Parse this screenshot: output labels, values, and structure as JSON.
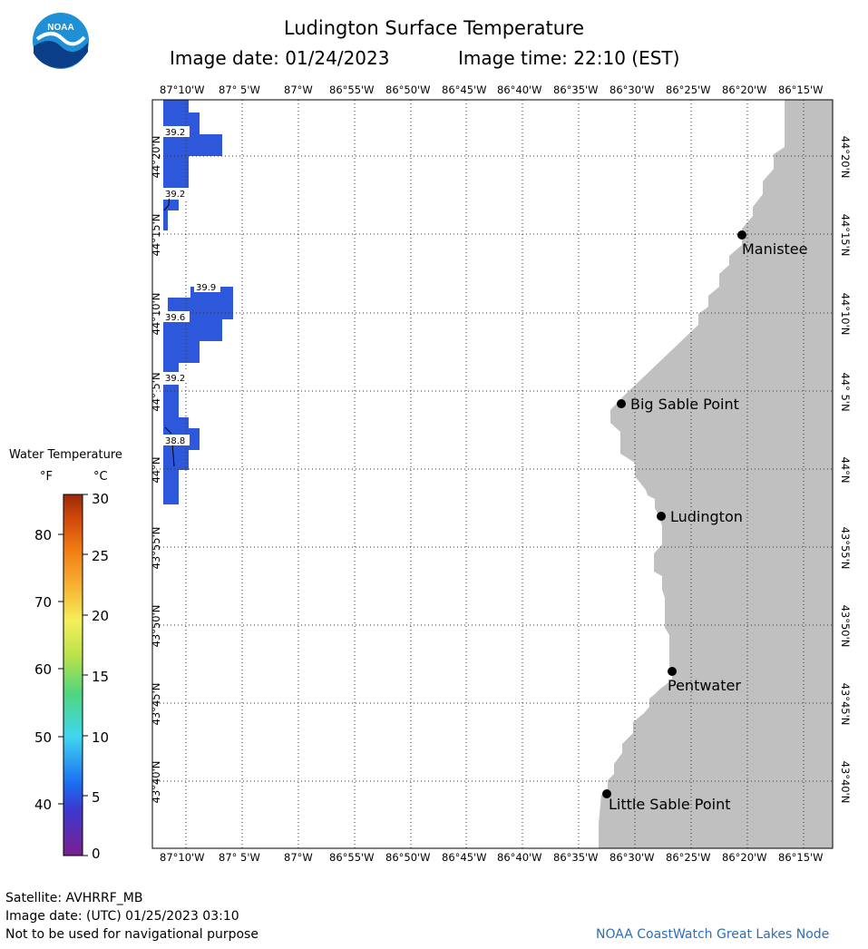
{
  "header": {
    "title": "Ludington Surface Temperature",
    "image_date": "Image date: 01/24/2023",
    "image_time": "Image time: 22:10 (EST)",
    "logo_text": "NOAA"
  },
  "map": {
    "lon_labels": [
      "87°10'W",
      "87° 5'W",
      "87°W",
      "86°55'W",
      "86°50'W",
      "86°45'W",
      "86°40'W",
      "86°35'W",
      "86°30'W",
      "86°25'W",
      "86°20'W",
      "86°15'W"
    ],
    "lat_labels": [
      "44°20'N",
      "44°15'N",
      "44°10'N",
      "44° 5'N",
      "44°N",
      "43°55'N",
      "43°50'N",
      "43°45'N",
      "43°40'N"
    ],
    "places": [
      "Manistee",
      "Big Sable Point",
      "Ludington",
      "Pentwater",
      "Little Sable Point"
    ],
    "temp_labels": [
      "39.2",
      "39.2",
      "39.9",
      "39.6",
      "39.2",
      "38.8"
    ],
    "land_color": "#c0c0c0",
    "water_color": "#2e58dc"
  },
  "legend": {
    "title": "Water Temperature",
    "unit_f": "°F",
    "unit_c": "°C",
    "f_ticks": [
      "80",
      "70",
      "60",
      "50",
      "40"
    ],
    "c_ticks": [
      "30",
      "25",
      "20",
      "15",
      "10",
      "5",
      "0"
    ]
  },
  "footer": {
    "satellite": "Satellite: AVHRRF_MB",
    "utc_date": "Image date: (UTC) 01/25/2023  03:10",
    "disclaimer": "Not to be used for navigational purpose",
    "credit": "NOAA CoastWatch Great Lakes Node"
  }
}
